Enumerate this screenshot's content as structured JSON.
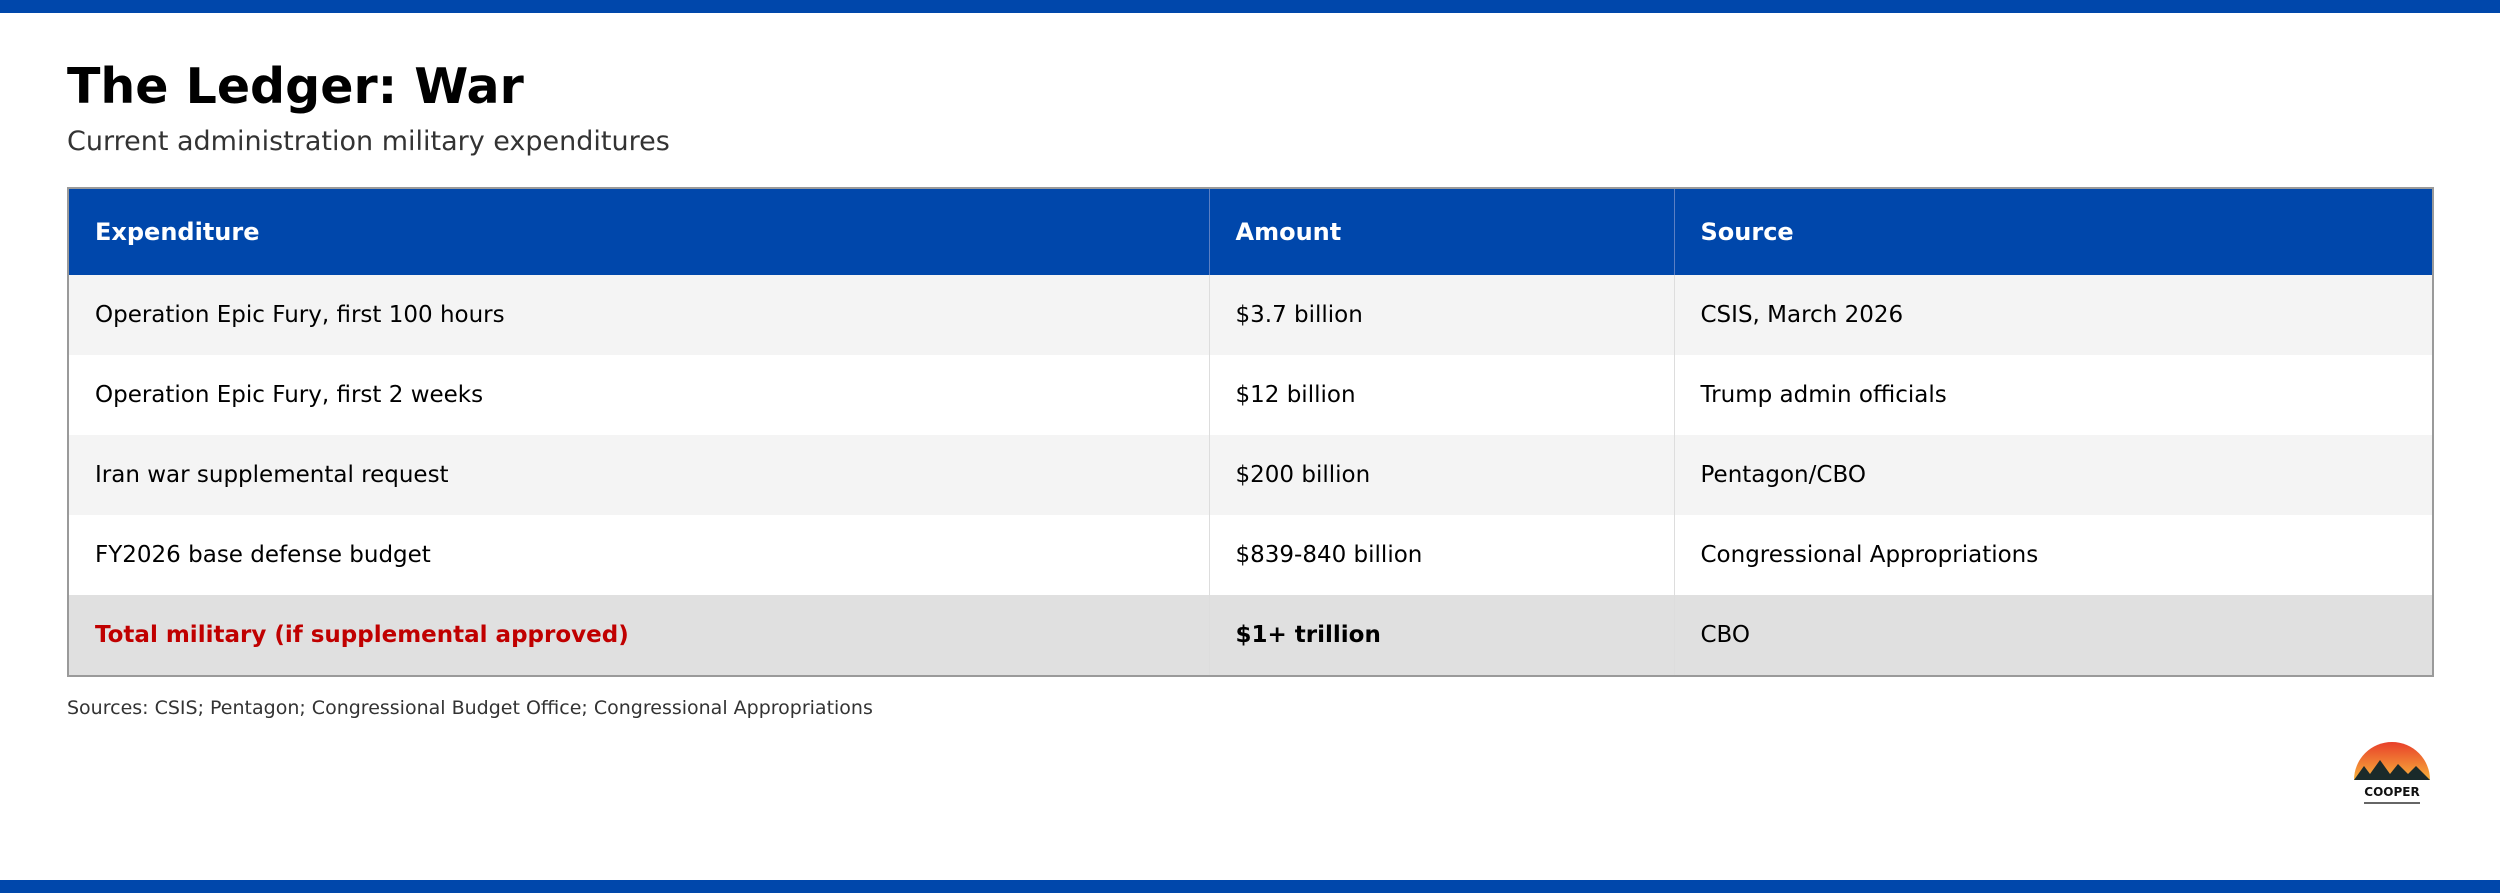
{
  "header": {
    "title": "The Ledger: War",
    "subtitle": "Current administration military expenditures"
  },
  "table": {
    "columns": [
      "Expenditure",
      "Amount",
      "Source"
    ],
    "rows": [
      [
        "Operation Epic Fury, first 100 hours",
        "$3.7 billion",
        "CSIS, March 2026"
      ],
      [
        "Operation Epic Fury, first 2 weeks",
        "$12 billion",
        "Trump admin officials"
      ],
      [
        "Iran war supplemental request",
        "$200 billion",
        "Pentagon/CBO"
      ],
      [
        "FY2026 base defense budget",
        "$839-840 billion",
        "Congressional Appropriations"
      ],
      [
        "Total military (if supplemental approved)",
        "$1+ trillion",
        "CBO"
      ]
    ]
  },
  "footnote": "Sources: CSIS; Pentagon; Congressional Budget Office; Congressional Appropriations",
  "logo": {
    "text": "COOPER"
  }
}
